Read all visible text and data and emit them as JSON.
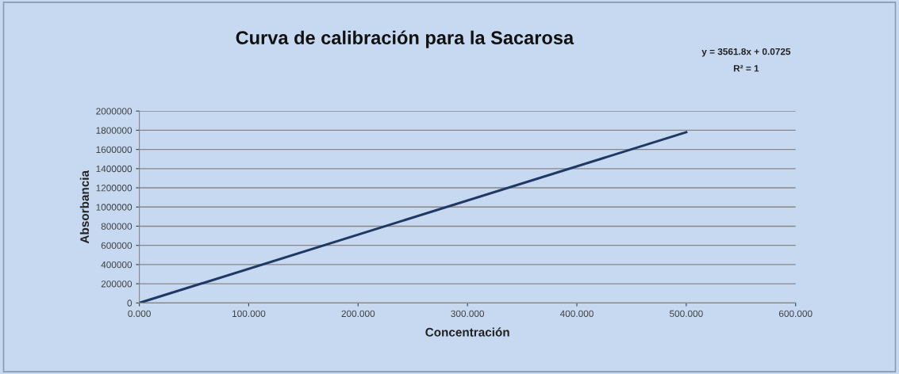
{
  "chart_data": {
    "type": "line",
    "title": "Curva de calibración para la Sacarosa",
    "xlabel": "Concentración",
    "ylabel": "Absorbancia",
    "annotations": [
      "y = 3561.8x + 0.0725",
      "R² = 1"
    ],
    "series": [
      {
        "x": [
          0,
          500
        ],
        "values": [
          0,
          1780000
        ],
        "color": "#1f3864"
      }
    ],
    "xlim": [
      0,
      600
    ],
    "xticks": [
      {
        "value": 0,
        "label": "0.000"
      },
      {
        "value": 100,
        "label": "100.000"
      },
      {
        "value": 200,
        "label": "200.000"
      },
      {
        "value": 300,
        "label": "300.000"
      },
      {
        "value": 400,
        "label": "400.000"
      },
      {
        "value": 500,
        "label": "500.000"
      },
      {
        "value": 600,
        "label": "600.000"
      }
    ],
    "ylim": [
      0,
      2000000
    ],
    "yticks": [
      0,
      200000,
      400000,
      600000,
      800000,
      1000000,
      1200000,
      1400000,
      1600000,
      1800000,
      2000000
    ],
    "grid": "y",
    "legend": false,
    "marker": "none",
    "line_style": "solid"
  }
}
